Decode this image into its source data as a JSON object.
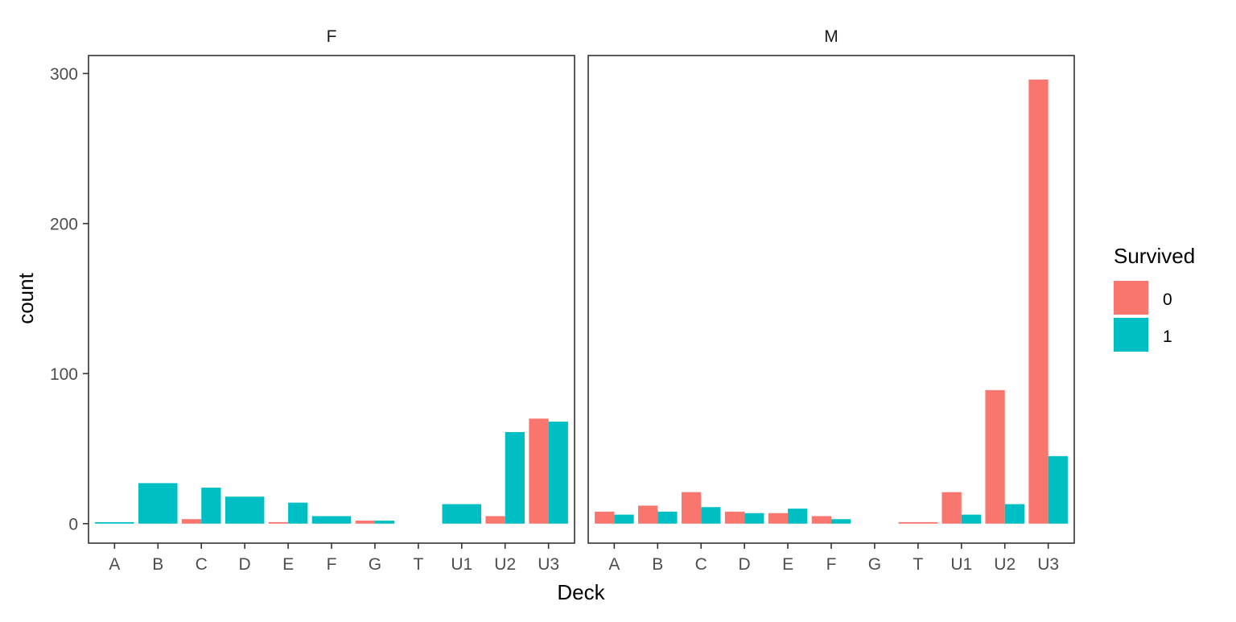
{
  "chart_data": {
    "type": "bar",
    "xlabel": "Deck",
    "ylabel": "count",
    "ylim": [
      -13,
      312
    ],
    "yticks": [
      0,
      100,
      200,
      300
    ],
    "grid": false,
    "legend": {
      "title": "Survived",
      "placement": "right",
      "entries": [
        "0",
        "1"
      ]
    },
    "colors": {
      "0": "#F8766D",
      "1": "#00BFC4"
    },
    "categories": [
      "A",
      "B",
      "C",
      "D",
      "E",
      "F",
      "G",
      "T",
      "U1",
      "U2",
      "U3"
    ],
    "panels": [
      {
        "label": "F",
        "bars": [
          {
            "cat": "A",
            "groups": [
              {
                "survived": "1",
                "value": 1
              }
            ]
          },
          {
            "cat": "B",
            "groups": [
              {
                "survived": "1",
                "value": 27
              }
            ]
          },
          {
            "cat": "C",
            "groups": [
              {
                "survived": "0",
                "value": 3
              },
              {
                "survived": "1",
                "value": 24
              }
            ]
          },
          {
            "cat": "D",
            "groups": [
              {
                "survived": "1",
                "value": 18
              }
            ]
          },
          {
            "cat": "E",
            "groups": [
              {
                "survived": "0",
                "value": 1
              },
              {
                "survived": "1",
                "value": 14
              }
            ]
          },
          {
            "cat": "F",
            "groups": [
              {
                "survived": "1",
                "value": 5
              }
            ]
          },
          {
            "cat": "G",
            "groups": [
              {
                "survived": "0",
                "value": 2
              },
              {
                "survived": "1",
                "value": 2
              }
            ]
          },
          {
            "cat": "U1",
            "groups": [
              {
                "survived": "1",
                "value": 13
              }
            ]
          },
          {
            "cat": "U2",
            "groups": [
              {
                "survived": "0",
                "value": 5
              },
              {
                "survived": "1",
                "value": 61
              }
            ]
          },
          {
            "cat": "U3",
            "groups": [
              {
                "survived": "0",
                "value": 70
              },
              {
                "survived": "1",
                "value": 68
              }
            ]
          }
        ]
      },
      {
        "label": "M",
        "bars": [
          {
            "cat": "A",
            "groups": [
              {
                "survived": "0",
                "value": 8
              },
              {
                "survived": "1",
                "value": 6
              }
            ]
          },
          {
            "cat": "B",
            "groups": [
              {
                "survived": "0",
                "value": 12
              },
              {
                "survived": "1",
                "value": 8
              }
            ]
          },
          {
            "cat": "C",
            "groups": [
              {
                "survived": "0",
                "value": 21
              },
              {
                "survived": "1",
                "value": 11
              }
            ]
          },
          {
            "cat": "D",
            "groups": [
              {
                "survived": "0",
                "value": 8
              },
              {
                "survived": "1",
                "value": 7
              }
            ]
          },
          {
            "cat": "E",
            "groups": [
              {
                "survived": "0",
                "value": 7
              },
              {
                "survived": "1",
                "value": 10
              }
            ]
          },
          {
            "cat": "F",
            "groups": [
              {
                "survived": "0",
                "value": 5
              },
              {
                "survived": "1",
                "value": 3
              }
            ]
          },
          {
            "cat": "T",
            "groups": [
              {
                "survived": "0",
                "value": 1
              }
            ]
          },
          {
            "cat": "U1",
            "groups": [
              {
                "survived": "0",
                "value": 21
              },
              {
                "survived": "1",
                "value": 6
              }
            ]
          },
          {
            "cat": "U2",
            "groups": [
              {
                "survived": "0",
                "value": 89
              },
              {
                "survived": "1",
                "value": 13
              }
            ]
          },
          {
            "cat": "U3",
            "groups": [
              {
                "survived": "0",
                "value": 296
              },
              {
                "survived": "1",
                "value": 45
              }
            ]
          }
        ]
      }
    ]
  }
}
